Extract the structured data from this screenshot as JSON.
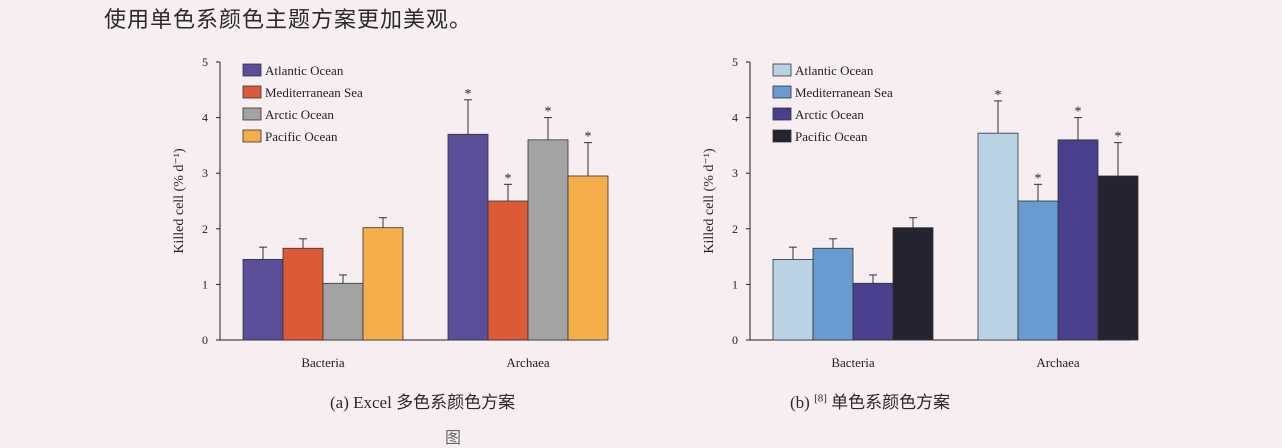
{
  "intro_text": "使用单色系颜色主题方案更加美观。",
  "captions": {
    "a_prefix": "(a) Excel ",
    "a_suffix": "多色系颜色方案",
    "b_prefix": "(b) ",
    "b_sup": "[8]",
    "b_suffix": "单色系颜色方案"
  },
  "bottom_text": "图",
  "chart_data": [
    {
      "type": "bar",
      "ylabel": "Killed cell (% d⁻¹)",
      "ylim": [
        0,
        5
      ],
      "yticks": [
        "0",
        "1",
        "2",
        "3",
        "4",
        "5"
      ],
      "categories": [
        "Bacteria",
        "Archaea"
      ],
      "legend_position": "top-left",
      "series": [
        {
          "name": "Atlantic Ocean",
          "color": "#5b4e98",
          "values": [
            1.45,
            3.7
          ],
          "errors": [
            0.22,
            0.62
          ],
          "significance": [
            "",
            "*"
          ]
        },
        {
          "name": "Mediterranean Sea",
          "color": "#dc5a36",
          "values": [
            1.65,
            2.5
          ],
          "errors": [
            0.17,
            0.3
          ],
          "significance": [
            "",
            "*"
          ]
        },
        {
          "name": "Arctic Ocean",
          "color": "#a3a3a3",
          "values": [
            1.02,
            3.6
          ],
          "errors": [
            0.15,
            0.4
          ],
          "significance": [
            "",
            "*"
          ]
        },
        {
          "name": "Pacific Ocean",
          "color": "#f4ae4a",
          "values": [
            2.02,
            2.95
          ],
          "errors": [
            0.18,
            0.6
          ],
          "significance": [
            "",
            "*"
          ]
        }
      ]
    },
    {
      "type": "bar",
      "ylabel": "Killed cell (% d⁻¹)",
      "ylim": [
        0,
        5
      ],
      "yticks": [
        "0",
        "1",
        "2",
        "3",
        "4",
        "5"
      ],
      "categories": [
        "Bacteria",
        "Archaea"
      ],
      "legend_position": "top-left",
      "series": [
        {
          "name": "Atlantic Ocean",
          "color": "#b9d3e4",
          "values": [
            1.45,
            3.72
          ],
          "errors": [
            0.22,
            0.58
          ],
          "significance": [
            "",
            "*"
          ]
        },
        {
          "name": "Mediterranean Sea",
          "color": "#6a9bd0",
          "values": [
            1.65,
            2.5
          ],
          "errors": [
            0.17,
            0.3
          ],
          "significance": [
            "",
            "*"
          ]
        },
        {
          "name": "Arctic Ocean",
          "color": "#4a3f8c",
          "values": [
            1.02,
            3.6
          ],
          "errors": [
            0.15,
            0.4
          ],
          "significance": [
            "",
            "*"
          ]
        },
        {
          "name": "Pacific Ocean",
          "color": "#24232f",
          "values": [
            2.02,
            2.95
          ],
          "errors": [
            0.18,
            0.6
          ],
          "significance": [
            "",
            "*"
          ]
        }
      ]
    }
  ]
}
